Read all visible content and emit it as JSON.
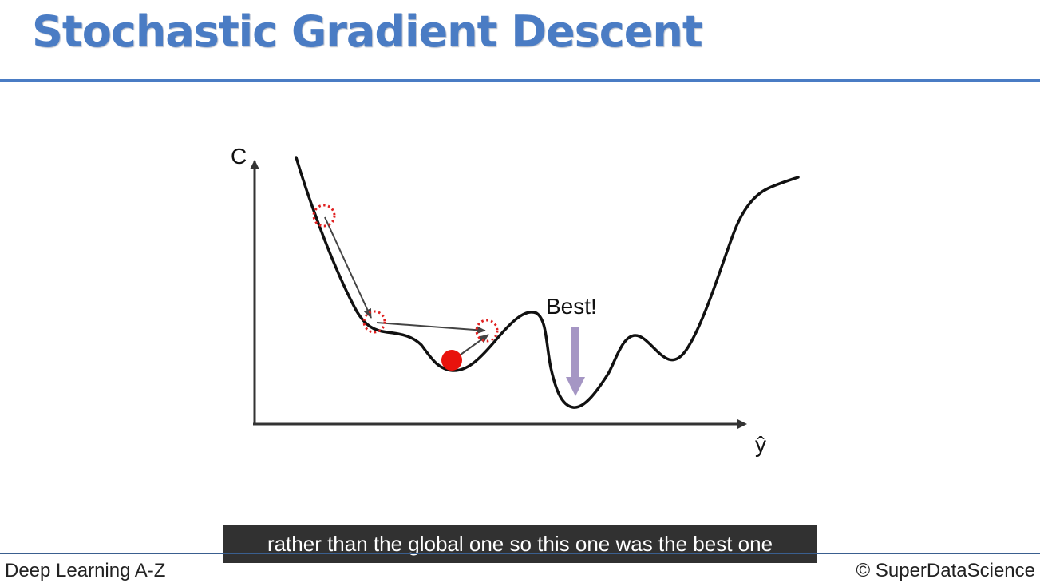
{
  "slide": {
    "title": "Stochastic Gradient Descent"
  },
  "diagram": {
    "y_axis_label": "C",
    "x_axis_label": "ŷ",
    "best_label": "Best!",
    "colors": {
      "title": "#4a7cc4",
      "curve": "#111111",
      "step_circle": "#e02020",
      "current_point": "#e8120c",
      "step_arrow": "#444444",
      "best_arrow": "#a596c4"
    },
    "steps_shown": 3
  },
  "caption": {
    "text": "rather than the global one so this one was the best one"
  },
  "footer": {
    "course": "Deep Learning A-Z",
    "copyright": "© SuperDataScience"
  }
}
